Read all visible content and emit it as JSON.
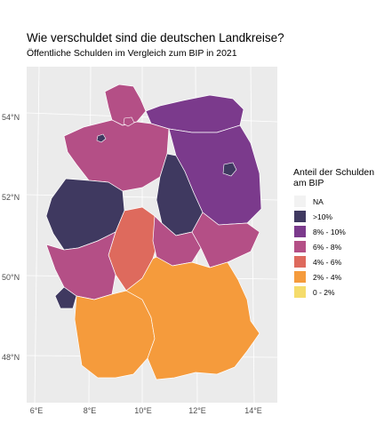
{
  "title": "Wie verschuldet sind die deutschen Landkreise?",
  "subtitle": "Öffentliche Schulden im Vergleich zum BIP in 2021",
  "axes": {
    "y_ticks": [
      "54°N",
      "52°N",
      "50°N",
      "48°N"
    ],
    "x_ticks": [
      "6°E",
      "8°E",
      "10°E",
      "12°E",
      "14°E"
    ]
  },
  "legend": {
    "title_line1": "Anteil der Schulden",
    "title_line2": "am BIP",
    "items": [
      {
        "label": "NA",
        "color": "#f2f2f2"
      },
      {
        "label": ">10%",
        "color": "#3f3960"
      },
      {
        "label": "8% - 10%",
        "color": "#7b3a8c"
      },
      {
        "label": "6% - 8%",
        "color": "#b44f86"
      },
      {
        "label": "4% - 6%",
        "color": "#de6a5d"
      },
      {
        "label": "2% - 4%",
        "color": "#f59b3c"
      },
      {
        "label": "0 - 2%",
        "color": "#f5dc6b"
      }
    ]
  },
  "regions": [
    {
      "name": "Schleswig-Holstein",
      "share": "6% - 8%"
    },
    {
      "name": "Mecklenburg-Vorpommern",
      "share": "8% - 10%"
    },
    {
      "name": "Niedersachsen",
      "share": "6% - 8%"
    },
    {
      "name": "Brandenburg",
      "share": "8% - 10%"
    },
    {
      "name": "Sachsen-Anhalt",
      "share": ">10%"
    },
    {
      "name": "Nordrhein-Westfalen",
      "share": ">10%"
    },
    {
      "name": "Hessen",
      "share": "4% - 6%"
    },
    {
      "name": "Thüringen",
      "share": "6% - 8%"
    },
    {
      "name": "Sachsen",
      "share": "6% - 8%"
    },
    {
      "name": "Rheinland-Pfalz",
      "share": "6% - 8%"
    },
    {
      "name": "Saarland",
      "share": ">10%"
    },
    {
      "name": "Baden-Württemberg",
      "share": "2% - 4%"
    },
    {
      "name": "Bayern",
      "share": "2% - 4%"
    }
  ]
}
